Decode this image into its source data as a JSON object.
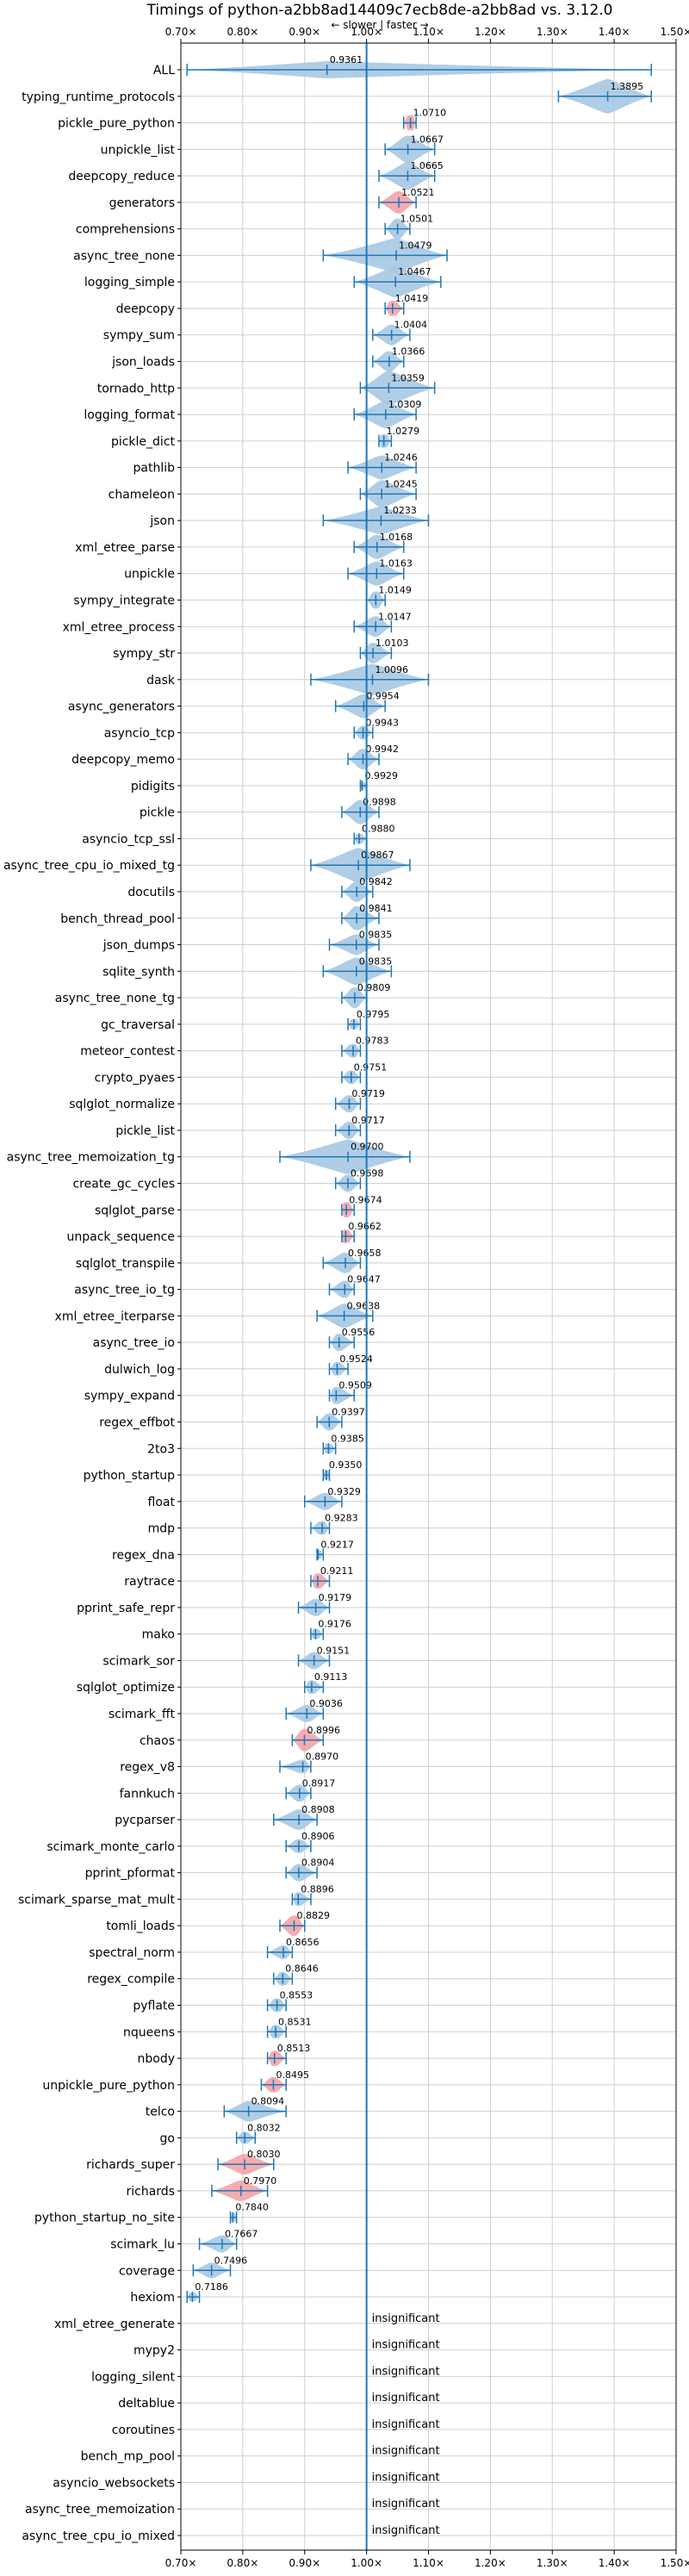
{
  "chart_data": {
    "type": "violin",
    "title": "Timings of python-a2bb8ad14409c7ecb8de-a2bb8ad vs. 3.12.0",
    "subtitle": "← slower | faster →",
    "xlim": [
      0.7,
      1.5
    ],
    "xticks": [
      0.7,
      0.8,
      0.9,
      1.0,
      1.1,
      1.2,
      1.3,
      1.4,
      1.5
    ],
    "xtick_labels": [
      "0.70×",
      "0.80×",
      "0.90×",
      "1.00×",
      "1.10×",
      "1.20×",
      "1.30×",
      "1.40×",
      "1.50×"
    ],
    "reference_line": 1.0,
    "grid": true,
    "colors": {
      "violin": "#a7c8e3",
      "significant": "#f4a3a8",
      "line": "#1f77b4",
      "grid": "#cfcfcf"
    },
    "insignificant_label": "insignificant",
    "benchmarks": [
      {
        "name": "ALL",
        "value": 0.9361,
        "label": "0.9361",
        "lo": 0.71,
        "hi": 1.46,
        "width": 10,
        "highlight": false
      },
      {
        "name": "typing_runtime_protocols",
        "value": 1.3895,
        "label": "1.3895",
        "lo": 1.31,
        "hi": 1.46,
        "width": 20,
        "highlight": false
      },
      {
        "name": "pickle_pure_python",
        "value": 1.071,
        "label": "1.0710",
        "lo": 1.06,
        "hi": 1.08,
        "width": 9,
        "highlight": true
      },
      {
        "name": "unpickle_list",
        "value": 1.0667,
        "label": "1.0667",
        "lo": 1.03,
        "hi": 1.11,
        "width": 16,
        "highlight": false
      },
      {
        "name": "deepcopy_reduce",
        "value": 1.0665,
        "label": "1.0665",
        "lo": 1.02,
        "hi": 1.11,
        "width": 16,
        "highlight": false
      },
      {
        "name": "generators",
        "value": 1.0521,
        "label": "1.0521",
        "lo": 1.02,
        "hi": 1.08,
        "width": 13,
        "highlight": true
      },
      {
        "name": "comprehensions",
        "value": 1.0501,
        "label": "1.0501",
        "lo": 1.03,
        "hi": 1.07,
        "width": 12,
        "highlight": false
      },
      {
        "name": "async_tree_none",
        "value": 1.0479,
        "label": "1.0479",
        "lo": 0.93,
        "hi": 1.13,
        "width": 20,
        "highlight": false
      },
      {
        "name": "logging_simple",
        "value": 1.0467,
        "label": "1.0467",
        "lo": 0.98,
        "hi": 1.12,
        "width": 18,
        "highlight": false
      },
      {
        "name": "deepcopy",
        "value": 1.0419,
        "label": "1.0419",
        "lo": 1.03,
        "hi": 1.06,
        "width": 9,
        "highlight": true
      },
      {
        "name": "sympy_sum",
        "value": 1.0404,
        "label": "1.0404",
        "lo": 1.01,
        "hi": 1.07,
        "width": 12,
        "highlight": false
      },
      {
        "name": "json_loads",
        "value": 1.0366,
        "label": "1.0366",
        "lo": 1.01,
        "hi": 1.06,
        "width": 12,
        "highlight": false
      },
      {
        "name": "tornado_http",
        "value": 1.0359,
        "label": "1.0359",
        "lo": 0.99,
        "hi": 1.11,
        "width": 20,
        "highlight": false
      },
      {
        "name": "logging_format",
        "value": 1.0309,
        "label": "1.0309",
        "lo": 0.98,
        "hi": 1.08,
        "width": 16,
        "highlight": false
      },
      {
        "name": "pickle_dict",
        "value": 1.0279,
        "label": "1.0279",
        "lo": 1.02,
        "hi": 1.04,
        "width": 8,
        "highlight": false
      },
      {
        "name": "pathlib",
        "value": 1.0246,
        "label": "1.0246",
        "lo": 0.97,
        "hi": 1.08,
        "width": 14,
        "highlight": false
      },
      {
        "name": "chameleon",
        "value": 1.0245,
        "label": "1.0245",
        "lo": 0.99,
        "hi": 1.08,
        "width": 16,
        "highlight": false
      },
      {
        "name": "json",
        "value": 1.0233,
        "label": "1.0233",
        "lo": 0.93,
        "hi": 1.1,
        "width": 16,
        "highlight": false
      },
      {
        "name": "xml_etree_parse",
        "value": 1.0168,
        "label": "1.0168",
        "lo": 0.98,
        "hi": 1.06,
        "width": 14,
        "highlight": false
      },
      {
        "name": "unpickle",
        "value": 1.0163,
        "label": "1.0163",
        "lo": 0.97,
        "hi": 1.06,
        "width": 14,
        "highlight": false
      },
      {
        "name": "sympy_integrate",
        "value": 1.0149,
        "label": "1.0149",
        "lo": 1.0,
        "hi": 1.03,
        "width": 10,
        "highlight": false
      },
      {
        "name": "xml_etree_process",
        "value": 1.0147,
        "label": "1.0147",
        "lo": 0.98,
        "hi": 1.04,
        "width": 12,
        "highlight": false
      },
      {
        "name": "sympy_str",
        "value": 1.0103,
        "label": "1.0103",
        "lo": 0.99,
        "hi": 1.04,
        "width": 12,
        "highlight": false
      },
      {
        "name": "dask",
        "value": 1.0096,
        "label": "1.0096",
        "lo": 0.91,
        "hi": 1.1,
        "width": 18,
        "highlight": false
      },
      {
        "name": "async_generators",
        "value": 0.9954,
        "label": "0.9954",
        "lo": 0.95,
        "hi": 1.03,
        "width": 14,
        "highlight": false
      },
      {
        "name": "asyncio_tcp",
        "value": 0.9943,
        "label": "0.9943",
        "lo": 0.98,
        "hi": 1.01,
        "width": 8,
        "highlight": false
      },
      {
        "name": "deepcopy_memo",
        "value": 0.9942,
        "label": "0.9942",
        "lo": 0.97,
        "hi": 1.02,
        "width": 12,
        "highlight": false
      },
      {
        "name": "pidigits",
        "value": 0.9929,
        "label": "0.9929",
        "lo": 0.99,
        "hi": 1.0,
        "width": 4,
        "highlight": false
      },
      {
        "name": "pickle",
        "value": 0.9898,
        "label": "0.9898",
        "lo": 0.96,
        "hi": 1.02,
        "width": 14,
        "highlight": false
      },
      {
        "name": "asyncio_tcp_ssl",
        "value": 0.988,
        "label": "0.9880",
        "lo": 0.98,
        "hi": 1.0,
        "width": 6,
        "highlight": false
      },
      {
        "name": "async_tree_cpu_io_mixed_tg",
        "value": 0.9867,
        "label": "0.9867",
        "lo": 0.91,
        "hi": 1.07,
        "width": 20,
        "highlight": false
      },
      {
        "name": "docutils",
        "value": 0.9842,
        "label": "0.9842",
        "lo": 0.96,
        "hi": 1.01,
        "width": 12,
        "highlight": false
      },
      {
        "name": "bench_thread_pool",
        "value": 0.9841,
        "label": "0.9841",
        "lo": 0.96,
        "hi": 1.02,
        "width": 14,
        "highlight": false
      },
      {
        "name": "json_dumps",
        "value": 0.9835,
        "label": "0.9835",
        "lo": 0.94,
        "hi": 1.02,
        "width": 12,
        "highlight": false
      },
      {
        "name": "sqlite_synth",
        "value": 0.9835,
        "label": "0.9835",
        "lo": 0.93,
        "hi": 1.04,
        "width": 16,
        "highlight": false
      },
      {
        "name": "async_tree_none_tg",
        "value": 0.9809,
        "label": "0.9809",
        "lo": 0.96,
        "hi": 1.0,
        "width": 12,
        "highlight": false
      },
      {
        "name": "gc_traversal",
        "value": 0.9795,
        "label": "0.9795",
        "lo": 0.97,
        "hi": 0.99,
        "width": 6,
        "highlight": false
      },
      {
        "name": "meteor_contest",
        "value": 0.9783,
        "label": "0.9783",
        "lo": 0.96,
        "hi": 0.99,
        "width": 8,
        "highlight": false
      },
      {
        "name": "crypto_pyaes",
        "value": 0.9751,
        "label": "0.9751",
        "lo": 0.96,
        "hi": 0.99,
        "width": 8,
        "highlight": false
      },
      {
        "name": "sqlglot_normalize",
        "value": 0.9719,
        "label": "0.9719",
        "lo": 0.95,
        "hi": 0.99,
        "width": 10,
        "highlight": false
      },
      {
        "name": "pickle_list",
        "value": 0.9717,
        "label": "0.9717",
        "lo": 0.95,
        "hi": 0.99,
        "width": 10,
        "highlight": false
      },
      {
        "name": "async_tree_memoization_tg",
        "value": 0.97,
        "label": "0.9700",
        "lo": 0.86,
        "hi": 1.07,
        "width": 20,
        "highlight": false
      },
      {
        "name": "create_gc_cycles",
        "value": 0.9698,
        "label": "0.9698",
        "lo": 0.95,
        "hi": 0.99,
        "width": 10,
        "highlight": false
      },
      {
        "name": "sqlglot_parse",
        "value": 0.9674,
        "label": "0.9674",
        "lo": 0.96,
        "hi": 0.98,
        "width": 9,
        "highlight": true
      },
      {
        "name": "unpack_sequence",
        "value": 0.9662,
        "label": "0.9662",
        "lo": 0.96,
        "hi": 0.98,
        "width": 8,
        "highlight": true
      },
      {
        "name": "sqlglot_transpile",
        "value": 0.9658,
        "label": "0.9658",
        "lo": 0.93,
        "hi": 0.99,
        "width": 12,
        "highlight": false
      },
      {
        "name": "async_tree_io_tg",
        "value": 0.9647,
        "label": "0.9647",
        "lo": 0.94,
        "hi": 0.98,
        "width": 10,
        "highlight": false
      },
      {
        "name": "xml_etree_iterparse",
        "value": 0.9638,
        "label": "0.9638",
        "lo": 0.92,
        "hi": 1.01,
        "width": 14,
        "highlight": false
      },
      {
        "name": "async_tree_io",
        "value": 0.9556,
        "label": "0.9556",
        "lo": 0.94,
        "hi": 0.98,
        "width": 10,
        "highlight": false
      },
      {
        "name": "dulwich_log",
        "value": 0.9524,
        "label": "0.9524",
        "lo": 0.94,
        "hi": 0.97,
        "width": 8,
        "highlight": false
      },
      {
        "name": "sympy_expand",
        "value": 0.9509,
        "label": "0.9509",
        "lo": 0.94,
        "hi": 0.98,
        "width": 10,
        "highlight": false
      },
      {
        "name": "regex_effbot",
        "value": 0.9397,
        "label": "0.9397",
        "lo": 0.92,
        "hi": 0.96,
        "width": 10,
        "highlight": false
      },
      {
        "name": "2to3",
        "value": 0.9385,
        "label": "0.9385",
        "lo": 0.93,
        "hi": 0.95,
        "width": 6,
        "highlight": false
      },
      {
        "name": "python_startup",
        "value": 0.935,
        "label": "0.9350",
        "lo": 0.93,
        "hi": 0.94,
        "width": 5,
        "highlight": false
      },
      {
        "name": "float",
        "value": 0.9329,
        "label": "0.9329",
        "lo": 0.9,
        "hi": 0.96,
        "width": 10,
        "highlight": false
      },
      {
        "name": "mdp",
        "value": 0.9283,
        "label": "0.9283",
        "lo": 0.91,
        "hi": 0.94,
        "width": 8,
        "highlight": false
      },
      {
        "name": "regex_dna",
        "value": 0.9217,
        "label": "0.9217",
        "lo": 0.92,
        "hi": 0.93,
        "width": 5,
        "highlight": false
      },
      {
        "name": "raytrace",
        "value": 0.9211,
        "label": "0.9211",
        "lo": 0.91,
        "hi": 0.94,
        "width": 9,
        "highlight": true
      },
      {
        "name": "pprint_safe_repr",
        "value": 0.9179,
        "label": "0.9179",
        "lo": 0.89,
        "hi": 0.94,
        "width": 10,
        "highlight": false
      },
      {
        "name": "mako",
        "value": 0.9176,
        "label": "0.9176",
        "lo": 0.91,
        "hi": 0.93,
        "width": 6,
        "highlight": false
      },
      {
        "name": "scimark_sor",
        "value": 0.9151,
        "label": "0.9151",
        "lo": 0.89,
        "hi": 0.94,
        "width": 10,
        "highlight": false
      },
      {
        "name": "sqlglot_optimize",
        "value": 0.9113,
        "label": "0.9113",
        "lo": 0.9,
        "hi": 0.93,
        "width": 8,
        "highlight": false
      },
      {
        "name": "scimark_fft",
        "value": 0.9036,
        "label": "0.9036",
        "lo": 0.87,
        "hi": 0.93,
        "width": 10,
        "highlight": false
      },
      {
        "name": "chaos",
        "value": 0.8996,
        "label": "0.8996",
        "lo": 0.88,
        "hi": 0.93,
        "width": 13,
        "highlight": true
      },
      {
        "name": "regex_v8",
        "value": 0.897,
        "label": "0.8970",
        "lo": 0.86,
        "hi": 0.91,
        "width": 8,
        "highlight": false
      },
      {
        "name": "fannkuch",
        "value": 0.8917,
        "label": "0.8917",
        "lo": 0.87,
        "hi": 0.91,
        "width": 10,
        "highlight": false
      },
      {
        "name": "pycparser",
        "value": 0.8908,
        "label": "0.8908",
        "lo": 0.85,
        "hi": 0.92,
        "width": 12,
        "highlight": false
      },
      {
        "name": "scimark_monte_carlo",
        "value": 0.8906,
        "label": "0.8906",
        "lo": 0.87,
        "hi": 0.91,
        "width": 8,
        "highlight": false
      },
      {
        "name": "pprint_pformat",
        "value": 0.8904,
        "label": "0.8904",
        "lo": 0.87,
        "hi": 0.92,
        "width": 10,
        "highlight": false
      },
      {
        "name": "scimark_sparse_mat_mult",
        "value": 0.8896,
        "label": "0.8896",
        "lo": 0.88,
        "hi": 0.91,
        "width": 8,
        "highlight": false
      },
      {
        "name": "tomli_loads",
        "value": 0.8829,
        "label": "0.8829",
        "lo": 0.86,
        "hi": 0.9,
        "width": 12,
        "highlight": true
      },
      {
        "name": "spectral_norm",
        "value": 0.8656,
        "label": "0.8656",
        "lo": 0.84,
        "hi": 0.88,
        "width": 8,
        "highlight": false
      },
      {
        "name": "regex_compile",
        "value": 0.8646,
        "label": "0.8646",
        "lo": 0.85,
        "hi": 0.88,
        "width": 8,
        "highlight": false
      },
      {
        "name": "pyflate",
        "value": 0.8553,
        "label": "0.8553",
        "lo": 0.84,
        "hi": 0.87,
        "width": 8,
        "highlight": false
      },
      {
        "name": "nqueens",
        "value": 0.8531,
        "label": "0.8531",
        "lo": 0.84,
        "hi": 0.87,
        "width": 8,
        "highlight": false
      },
      {
        "name": "nbody",
        "value": 0.8513,
        "label": "0.8513",
        "lo": 0.84,
        "hi": 0.87,
        "width": 9,
        "highlight": true
      },
      {
        "name": "unpickle_pure_python",
        "value": 0.8495,
        "label": "0.8495",
        "lo": 0.83,
        "hi": 0.87,
        "width": 9,
        "highlight": true
      },
      {
        "name": "telco",
        "value": 0.8094,
        "label": "0.8094",
        "lo": 0.77,
        "hi": 0.87,
        "width": 12,
        "highlight": false
      },
      {
        "name": "go",
        "value": 0.8032,
        "label": "0.8032",
        "lo": 0.79,
        "hi": 0.82,
        "width": 7,
        "highlight": false
      },
      {
        "name": "richards_super",
        "value": 0.803,
        "label": "0.8030",
        "lo": 0.76,
        "hi": 0.85,
        "width": 12,
        "highlight": true
      },
      {
        "name": "richards",
        "value": 0.797,
        "label": "0.7970",
        "lo": 0.75,
        "hi": 0.84,
        "width": 12,
        "highlight": true
      },
      {
        "name": "python_startup_no_site",
        "value": 0.784,
        "label": "0.7840",
        "lo": 0.78,
        "hi": 0.79,
        "width": 5,
        "highlight": false
      },
      {
        "name": "scimark_lu",
        "value": 0.7667,
        "label": "0.7667",
        "lo": 0.73,
        "hi": 0.79,
        "width": 10,
        "highlight": false
      },
      {
        "name": "coverage",
        "value": 0.7496,
        "label": "0.7496",
        "lo": 0.72,
        "hi": 0.78,
        "width": 9,
        "highlight": false
      },
      {
        "name": "hexiom",
        "value": 0.7186,
        "label": "0.7186",
        "lo": 0.71,
        "hi": 0.73,
        "width": 5,
        "highlight": false
      },
      {
        "name": "xml_etree_generate",
        "value": null,
        "label": "",
        "insignificant": true
      },
      {
        "name": "mypy2",
        "value": null,
        "label": "",
        "insignificant": true
      },
      {
        "name": "logging_silent",
        "value": null,
        "label": "",
        "insignificant": true
      },
      {
        "name": "deltablue",
        "value": null,
        "label": "",
        "insignificant": true
      },
      {
        "name": "coroutines",
        "value": null,
        "label": "",
        "insignificant": true
      },
      {
        "name": "bench_mp_pool",
        "value": null,
        "label": "",
        "insignificant": true
      },
      {
        "name": "asyncio_websockets",
        "value": null,
        "label": "",
        "insignificant": true
      },
      {
        "name": "async_tree_memoization",
        "value": null,
        "label": "",
        "insignificant": true
      },
      {
        "name": "async_tree_cpu_io_mixed",
        "value": null,
        "label": "",
        "insignificant": true
      }
    ]
  }
}
